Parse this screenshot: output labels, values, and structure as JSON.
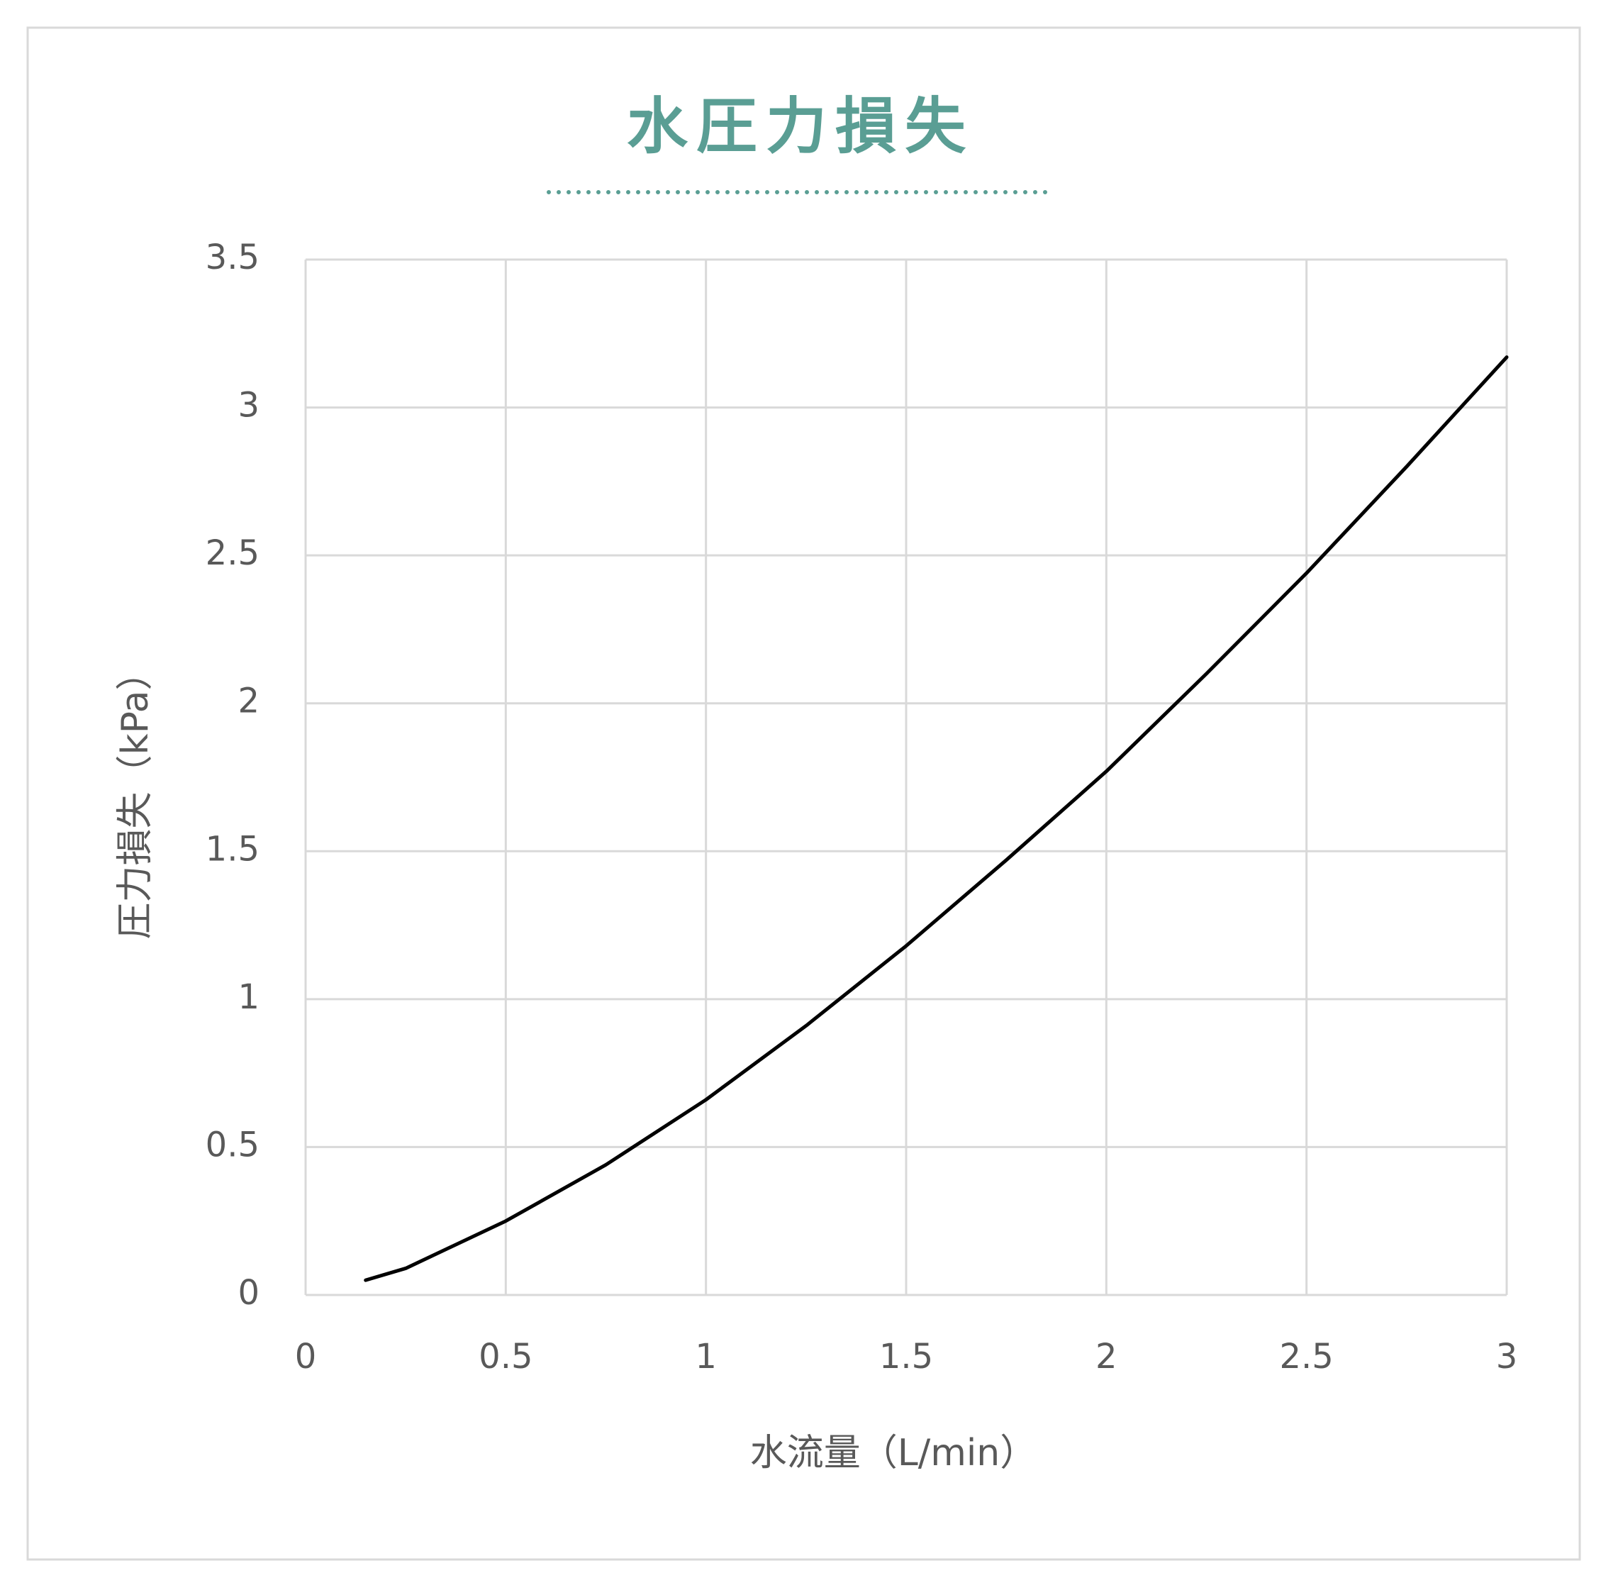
{
  "chart_data": {
    "type": "line",
    "title": "水圧力損失",
    "x_label": "水流量（L/min）",
    "y_label": "圧力損失（kPa）",
    "x": [
      0.15,
      0.25,
      0.5,
      0.75,
      1,
      1.25,
      1.5,
      1.75,
      2,
      2.25,
      2.5,
      2.75,
      3
    ],
    "series": [
      {
        "color": "#000000",
        "values": [
          0.05,
          0.09,
          0.25,
          0.44,
          0.66,
          0.91,
          1.18,
          1.47,
          1.77,
          2.1,
          2.44,
          2.8,
          3.17
        ]
      }
    ],
    "xlim": [
      0,
      3
    ],
    "xticks": [
      0,
      0.5,
      1,
      1.5,
      2,
      2.5,
      3
    ],
    "ylim": [
      0,
      3.5
    ],
    "yticks": [
      0,
      0.5,
      1,
      1.5,
      2,
      2.5,
      3,
      3.5
    ],
    "grid": true,
    "title_color": "#5a9e94"
  }
}
